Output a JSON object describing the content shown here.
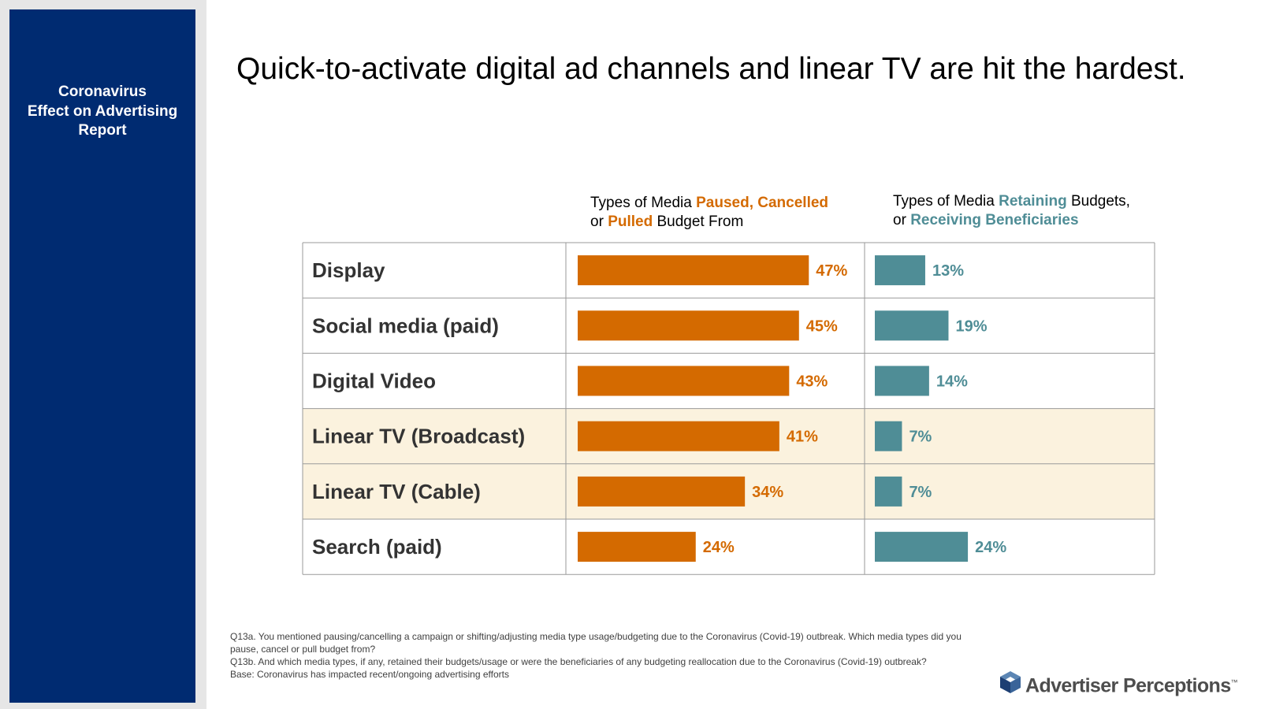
{
  "sidebar": {
    "title_lines": [
      "Coronavirus",
      "Effect on Advertising",
      "Report"
    ]
  },
  "page_title": "Quick-to-activate digital ad channels and linear TV are hit the hardest.",
  "headers": {
    "paused": {
      "prefix": "Types of Media ",
      "hl1": "Paused, Cancelled",
      "line2_prefix": "or ",
      "hl2": "Pulled",
      "suffix": " Budget From"
    },
    "retaining": {
      "prefix": "Types of Media ",
      "hl1": "Retaining",
      "line1_suffix": " Budgets,",
      "line2_prefix": "or ",
      "hl2": "Receiving Beneficiaries"
    }
  },
  "chart_data": {
    "type": "bar",
    "orientation": "horizontal",
    "categories": [
      "Display",
      "Social media (paid)",
      "Digital Video",
      "Linear TV (Broadcast)",
      "Linear TV (Cable)",
      "Search (paid)"
    ],
    "highlighted_categories": [
      "Linear TV (Broadcast)",
      "Linear TV (Cable)"
    ],
    "series": [
      {
        "name": "Types of Media Paused, Cancelled or Pulled Budget From",
        "values": [
          47,
          45,
          43,
          41,
          34,
          24
        ],
        "labels": [
          "47%",
          "45%",
          "43%",
          "41%",
          "34%",
          "24%"
        ],
        "color": "#d46a00"
      },
      {
        "name": "Types of Media Retaining Budgets, or Receiving Beneficiaries",
        "values": [
          13,
          19,
          14,
          7,
          7,
          24
        ],
        "labels": [
          "13%",
          "19%",
          "14%",
          "7%",
          "7%",
          "24%"
        ],
        "color": "#4f8d96"
      }
    ],
    "unit": "%",
    "highlight_color": "#fbf2de"
  },
  "footnote": [
    "Q13a. You mentioned pausing/cancelling a campaign or shifting/adjusting media type usage/budgeting due to the Coronavirus (Covid-19) outbreak. Which media types did you pause, cancel or pull budget from?",
    "Q13b. And which media types, if any, retained their budgets/usage or were the beneficiaries of any budgeting reallocation due to the Coronavirus (Covid-19) outbreak?",
    "Base: Coronavirus has impacted recent/ongoing advertising efforts"
  ],
  "logo": {
    "text": "Advertiser Perceptions",
    "mark": "™"
  },
  "colors": {
    "sidebar": "#002b71",
    "orange": "#d46a00",
    "teal": "#4f8d96"
  }
}
